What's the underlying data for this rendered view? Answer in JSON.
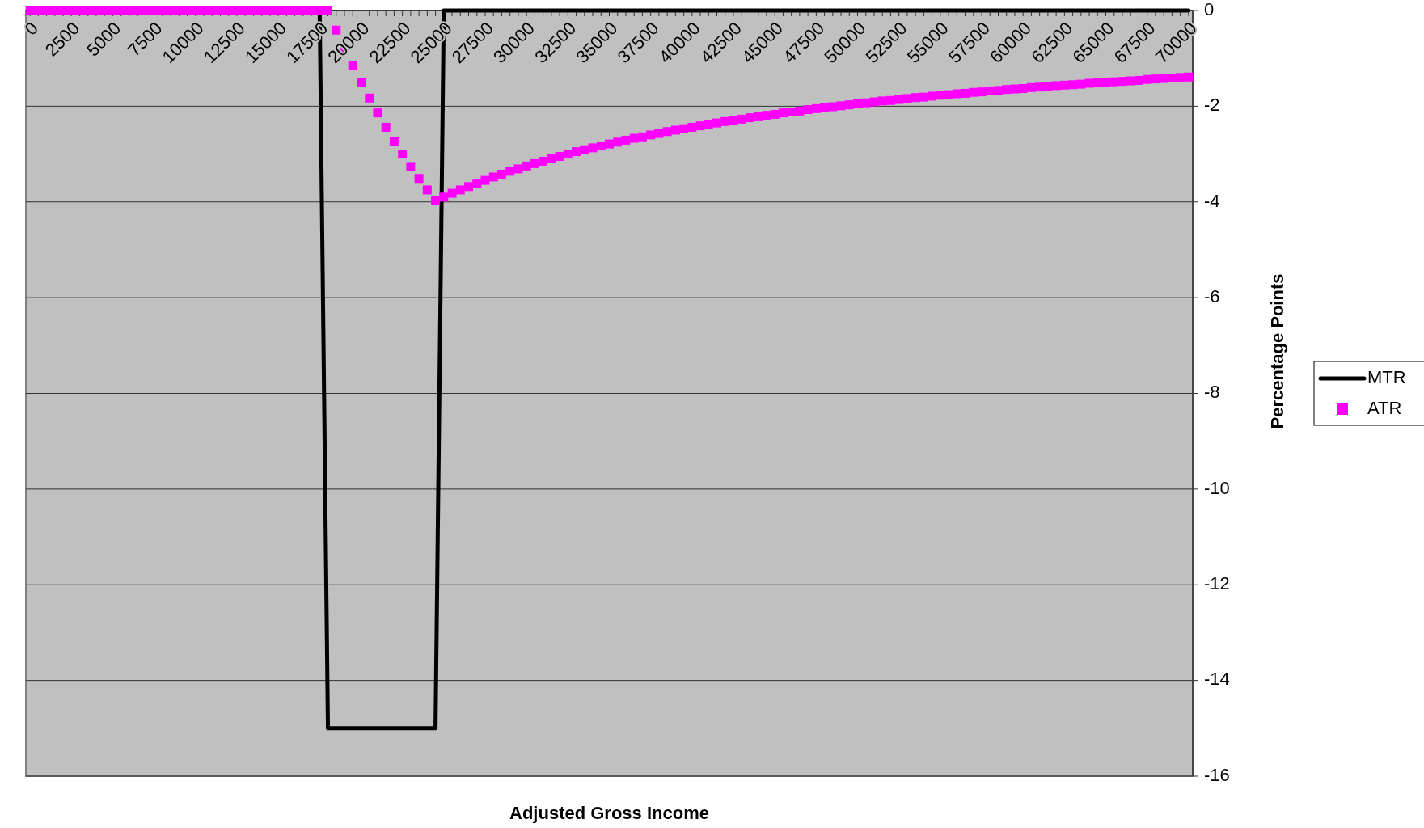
{
  "chart_data": {
    "type": "line",
    "xlabel": "Adjusted Gross Income",
    "ylabel": "Percentage Points",
    "categories": [
      "0",
      null,
      null,
      null,
      null,
      "2500",
      null,
      null,
      null,
      null,
      "5000",
      null,
      null,
      null,
      null,
      "7500",
      null,
      null,
      null,
      null,
      "10000",
      null,
      null,
      null,
      null,
      "12500",
      null,
      null,
      null,
      null,
      "15000",
      null,
      null,
      null,
      null,
      "17500",
      null,
      null,
      null,
      null,
      "20000",
      null,
      null,
      null,
      null,
      "22500",
      null,
      null,
      null,
      null,
      "25000",
      null,
      null,
      null,
      null,
      "27500",
      null,
      null,
      null,
      null,
      "30000",
      null,
      null,
      null,
      null,
      "32500",
      null,
      null,
      null,
      null,
      "35000",
      null,
      null,
      null,
      null,
      "37500",
      null,
      null,
      null,
      null,
      "40000",
      null,
      null,
      null,
      null,
      "42500",
      null,
      null,
      null,
      null,
      "45000",
      null,
      null,
      null,
      null,
      "47500",
      null,
      null,
      null,
      null,
      "50000",
      null,
      null,
      null,
      null,
      "52500",
      null,
      null,
      null,
      null,
      "55000",
      null,
      null,
      null,
      null,
      "57500",
      null,
      null,
      null,
      null,
      "60000",
      null,
      null,
      null,
      null,
      "62500",
      null,
      null,
      null,
      null,
      "65000",
      null,
      null,
      null,
      null,
      "67500",
      null,
      null,
      null,
      null,
      "70000"
    ],
    "series": [
      {
        "name": "MTR",
        "type": "line",
        "color": "#000000",
        "marker": "none",
        "values": [
          null,
          null,
          null,
          null,
          null,
          null,
          null,
          null,
          null,
          null,
          null,
          null,
          null,
          null,
          null,
          null,
          null,
          null,
          null,
          null,
          null,
          null,
          null,
          null,
          null,
          null,
          null,
          null,
          null,
          null,
          null,
          null,
          null,
          null,
          null,
          0,
          -15,
          -15,
          -15,
          -15,
          -15,
          -15,
          -15,
          -15,
          -15,
          -15,
          -15,
          -15,
          -15,
          -15,
          0,
          0,
          0,
          0,
          0,
          0,
          0,
          0,
          0,
          0,
          0,
          0,
          0,
          0,
          0,
          0,
          0,
          0,
          0,
          0,
          0,
          0,
          0,
          0,
          0,
          0,
          0,
          0,
          0,
          0,
          0,
          0,
          0,
          0,
          0,
          0,
          0,
          0,
          0,
          0,
          0,
          0,
          0,
          0,
          0,
          0,
          0,
          0,
          0,
          0,
          0,
          0,
          0,
          0,
          0,
          0,
          0,
          0,
          0,
          0,
          0,
          0,
          0,
          0,
          0,
          0,
          0,
          0,
          0,
          0,
          0,
          0,
          0,
          0,
          0,
          0,
          0,
          0,
          0,
          0,
          0,
          0,
          0,
          0,
          0,
          0,
          0,
          0,
          0,
          0,
          0
        ]
      },
      {
        "name": "ATR",
        "type": "scatter",
        "color": "#ff00ff",
        "marker": "square",
        "values": [
          0,
          0,
          0,
          0,
          0,
          0,
          0,
          0,
          0,
          0,
          0,
          0,
          0,
          0,
          0,
          0,
          0,
          0,
          0,
          0,
          0,
          0,
          0,
          0,
          0,
          0,
          0,
          0,
          0,
          0,
          0,
          0,
          0,
          0,
          0,
          0,
          0,
          -0.41,
          -0.79,
          -1.15,
          -1.5,
          -1.83,
          -2.14,
          -2.44,
          -2.73,
          -3.0,
          -3.26,
          -3.51,
          -3.75,
          -3.98,
          -3.9,
          -3.82,
          -3.75,
          -3.68,
          -3.61,
          -3.55,
          -3.48,
          -3.42,
          -3.36,
          -3.31,
          -3.25,
          -3.2,
          -3.15,
          -3.1,
          -3.05,
          -3.0,
          -2.95,
          -2.91,
          -2.87,
          -2.83,
          -2.79,
          -2.75,
          -2.71,
          -2.67,
          -2.64,
          -2.6,
          -2.57,
          -2.53,
          -2.5,
          -2.47,
          -2.44,
          -2.41,
          -2.38,
          -2.35,
          -2.32,
          -2.29,
          -2.27,
          -2.24,
          -2.22,
          -2.19,
          -2.17,
          -2.14,
          -2.12,
          -2.1,
          -2.07,
          -2.05,
          -2.03,
          -2.01,
          -1.99,
          -1.97,
          -1.95,
          -1.93,
          -1.91,
          -1.89,
          -1.88,
          -1.86,
          -1.84,
          -1.82,
          -1.81,
          -1.79,
          -1.77,
          -1.76,
          -1.74,
          -1.73,
          -1.71,
          -1.7,
          -1.68,
          -1.67,
          -1.65,
          -1.64,
          -1.63,
          -1.61,
          -1.6,
          -1.59,
          -1.57,
          -1.56,
          -1.55,
          -1.54,
          -1.52,
          -1.51,
          -1.5,
          -1.49,
          -1.48,
          -1.47,
          -1.46,
          -1.44,
          -1.43,
          -1.42,
          -1.41,
          -1.4,
          -1.39
        ]
      }
    ],
    "ylim": [
      -16,
      0
    ],
    "yticks": [
      0,
      -2,
      -4,
      -6,
      -8,
      -10,
      -12,
      -14,
      -16
    ],
    "grid": "y",
    "legend": "right"
  }
}
